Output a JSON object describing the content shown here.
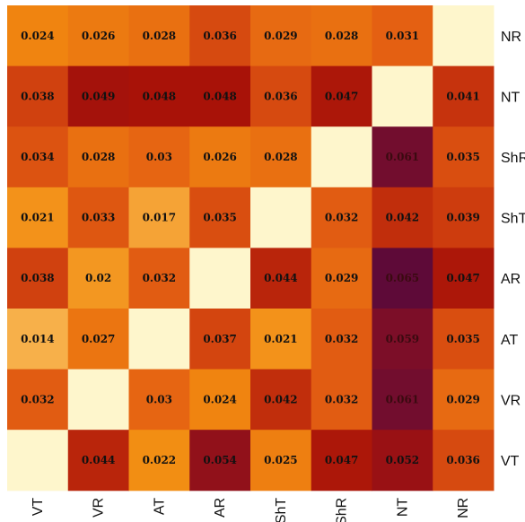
{
  "chart_data": {
    "type": "heatmap",
    "title": "",
    "xlabel": "",
    "ylabel": "",
    "columns": [
      "VT",
      "VR",
      "AT",
      "AR",
      "ShT",
      "ShR",
      "NT",
      "NR"
    ],
    "rows": [
      "NR",
      "NT",
      "ShR",
      "ShT",
      "AR",
      "AT",
      "VR",
      "VT"
    ],
    "values": [
      [
        0.024,
        0.026,
        0.028,
        0.036,
        0.029,
        0.028,
        0.031,
        null
      ],
      [
        0.038,
        0.049,
        0.048,
        0.048,
        0.036,
        0.047,
        null,
        0.041
      ],
      [
        0.034,
        0.028,
        0.03,
        0.026,
        0.028,
        null,
        0.061,
        0.035
      ],
      [
        0.021,
        0.033,
        0.017,
        0.035,
        null,
        0.032,
        0.042,
        0.039
      ],
      [
        0.038,
        0.02,
        0.032,
        null,
        0.044,
        0.029,
        0.065,
        0.047
      ],
      [
        0.014,
        0.027,
        null,
        0.037,
        0.021,
        0.032,
        0.059,
        0.035
      ],
      [
        0.032,
        null,
        0.03,
        0.024,
        0.042,
        0.032,
        0.061,
        0.029
      ],
      [
        null,
        0.044,
        0.022,
        0.054,
        0.025,
        0.047,
        0.052,
        0.036
      ]
    ],
    "labels": [
      [
        "0.024",
        "0.026",
        "0.028",
        "0.036",
        "0.029",
        "0.028",
        "0.031",
        ""
      ],
      [
        "0.038",
        "0.049",
        "0.048",
        "0.048",
        "0.036",
        "0.047",
        "",
        "0.041"
      ],
      [
        "0.034",
        "0.028",
        "0.03",
        "0.026",
        "0.028",
        "",
        "0.061",
        "0.035"
      ],
      [
        "0.021",
        "0.033",
        "0.017",
        "0.035",
        "",
        "0.032",
        "0.042",
        "0.039"
      ],
      [
        "0.038",
        "0.02",
        "0.032",
        "",
        "0.044",
        "0.029",
        "0.065",
        "0.047"
      ],
      [
        "0.014",
        "0.027",
        "",
        "0.037",
        "0.021",
        "0.032",
        "0.059",
        "0.035"
      ],
      [
        "0.032",
        "",
        "0.03",
        "0.024",
        "0.042",
        "0.032",
        "0.061",
        "0.029"
      ],
      [
        "",
        "0.044",
        "0.022",
        "0.054",
        "0.025",
        "0.047",
        "0.052",
        "0.036"
      ]
    ],
    "colormap": [
      "#fff6c8",
      "#f7b04a",
      "#f28c10",
      "#e46012",
      "#cc3a0e",
      "#a81208",
      "#881022",
      "#5e0a38"
    ],
    "diagonal_color": "#fef6cc",
    "grid": false,
    "legend": "none"
  }
}
